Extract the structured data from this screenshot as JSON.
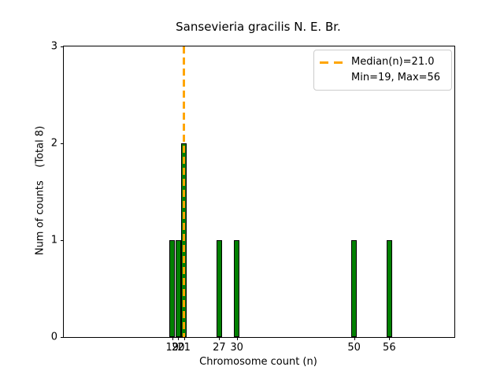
{
  "title": "Sansevieria gracilis N. E. Br.",
  "chart_data": {
    "type": "bar",
    "title": "Sansevieria gracilis N. E. Br.",
    "xlabel": "Chromosome count (n)",
    "ylabel": "Num of counts    (Total 8)",
    "categories": [
      19,
      20,
      21,
      27,
      30,
      50,
      56
    ],
    "values": [
      1,
      1,
      2,
      1,
      1,
      1,
      1
    ],
    "total_counts": 8,
    "bar_width": 1,
    "xlim": [
      0.5,
      67.1
    ],
    "ylim": [
      0,
      3
    ],
    "xticks": [
      19,
      20,
      21,
      27,
      30,
      50,
      56
    ],
    "yticks": [
      0,
      1,
      2,
      3
    ],
    "median": 21.0,
    "min": 19,
    "max": 56,
    "grid": false,
    "legend_position": "upper right",
    "colors": {
      "bar_fill": "#008000",
      "bar_edge": "#000000",
      "median_line": "#FFA500",
      "axes": "#000000",
      "legend_border": "#cccccc",
      "background": "#ffffff"
    }
  },
  "legend": {
    "median_label": "Median(n)=21.0",
    "minmax_label": "Min=19, Max=56"
  }
}
